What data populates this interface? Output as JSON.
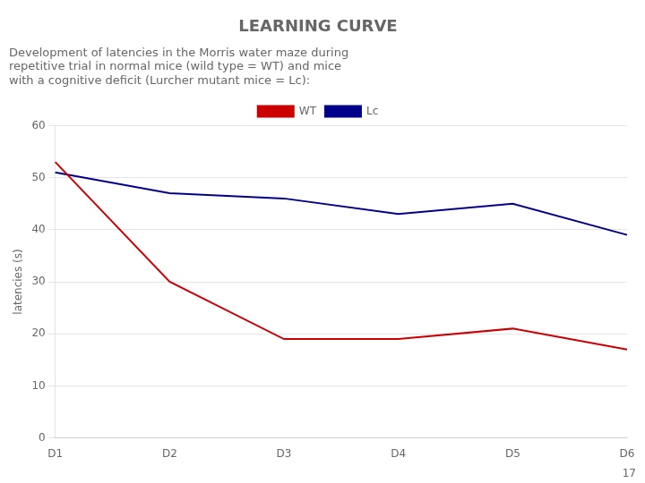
{
  "chart_data": {
    "type": "line",
    "title": "LEARNING CURVE",
    "subtitle": [
      "Development of latencies in the Morris water maze during",
      "repetitive trial in normal mice (wild type = WT) and mice",
      "with a cognitive deficit (Lurcher mutant mice = Lc):"
    ],
    "categories": [
      "D1",
      "D2",
      "D3",
      "D4",
      "D5",
      "D6"
    ],
    "series": [
      {
        "name": "WT",
        "color": "#CC0000",
        "values": [
          53,
          30,
          19,
          19,
          21,
          17
        ]
      },
      {
        "name": "Lc",
        "color": "#00008B",
        "values": [
          51,
          47,
          46,
          43,
          45,
          39
        ]
      }
    ],
    "ylabel": "latencies (s)",
    "ylim": [
      0,
      60
    ],
    "yticks": [
      0,
      10,
      20,
      30,
      40,
      50,
      60
    ],
    "grid": "y",
    "legend": "top",
    "marker": "none",
    "annotations": [
      "17"
    ]
  }
}
